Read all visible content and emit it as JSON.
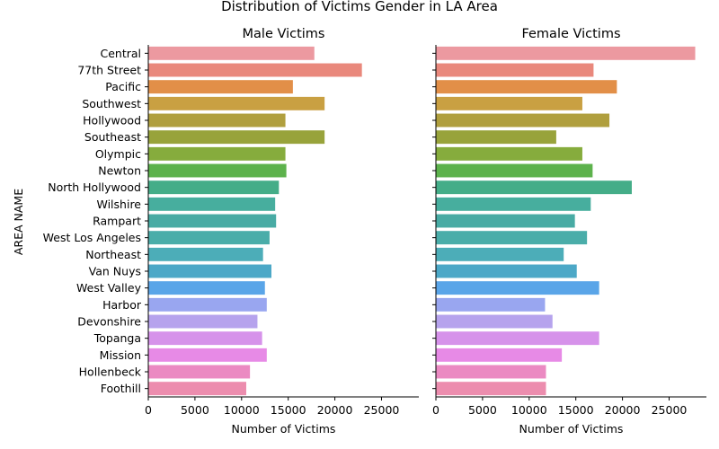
{
  "chart_data": {
    "type": "bar",
    "orientation": "horizontal",
    "title": "Distribution of Victims Gender in LA Area",
    "ylabel": "AREA NAME",
    "categories": [
      "Central",
      "77th Street",
      "Pacific",
      "Southwest",
      "Hollywood",
      "Southeast",
      "Olympic",
      "Newton",
      "North Hollywood",
      "Wilshire",
      "Rampart",
      "West Los Angeles",
      "Northeast",
      "Van Nuys",
      "West Valley",
      "Harbor",
      "Devonshire",
      "Topanga",
      "Mission",
      "Hollenbeck",
      "Foothill"
    ],
    "colors": [
      "#ec99a0",
      "#e9887c",
      "#e28f48",
      "#c9a042",
      "#b09f3e",
      "#98a33b",
      "#86ac3d",
      "#5db24c",
      "#44ad88",
      "#47ae9e",
      "#48aba4",
      "#4aada9",
      "#4cadb8",
      "#4ca8c7",
      "#5aa5e8",
      "#99a6f0",
      "#b6a3ed",
      "#d692ea",
      "#e78ae6",
      "#eb8ac2",
      "#ec8dae"
    ],
    "xticks": [
      0,
      5000,
      10000,
      15000,
      20000,
      25000
    ],
    "xlim": [
      0,
      29000
    ],
    "panels": [
      {
        "title": "Male Victims",
        "xlabel": "Number of Victims",
        "values": [
          17800,
          22900,
          15500,
          18900,
          14700,
          18900,
          14700,
          14800,
          14000,
          13600,
          13700,
          13000,
          12300,
          13200,
          12500,
          12700,
          11700,
          12200,
          12700,
          10900,
          10500
        ]
      },
      {
        "title": "Female Victims",
        "xlabel": "Number of Victims",
        "values": [
          27800,
          16900,
          19400,
          15700,
          18600,
          12900,
          15700,
          16800,
          21000,
          16600,
          14900,
          16200,
          13700,
          15100,
          17500,
          11700,
          12500,
          17500,
          13500,
          11800,
          11800
        ]
      }
    ]
  }
}
